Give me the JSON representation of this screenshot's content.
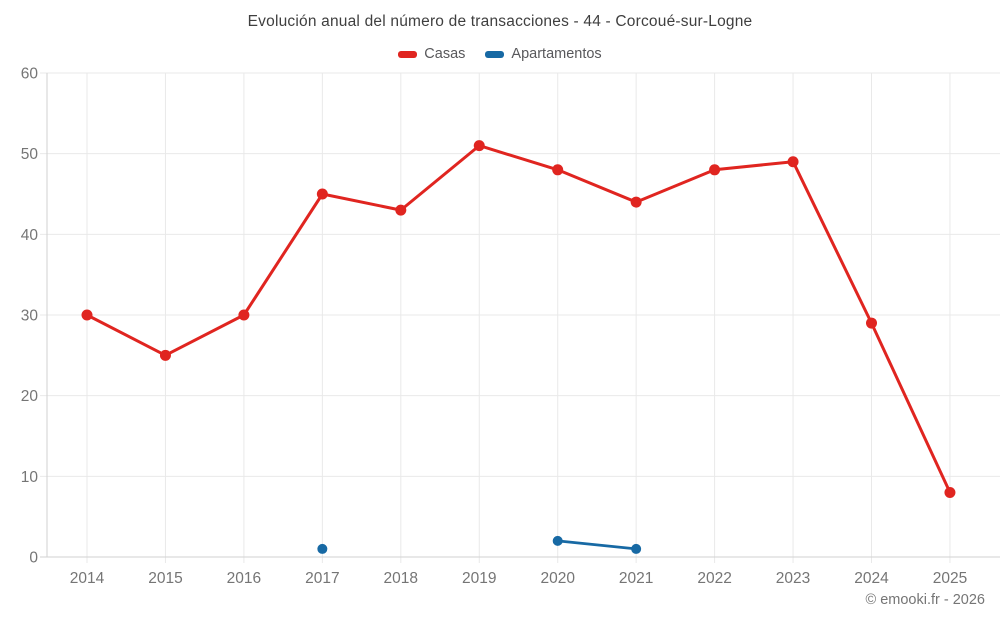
{
  "title": "Evolución anual del número de transacciones - 44 - Corcoué-sur-Logne",
  "footer": "© emooki.fr - 2026",
  "colors": {
    "casas": "#e02520",
    "apartamentos": "#1769a4",
    "grid": "#e9e9e9",
    "axis": "#d2d2d2",
    "tick_label": "#757575",
    "title_text": "#3f3f3f",
    "legend_text": "#58585b",
    "background": "#ffffff"
  },
  "chart_data": {
    "type": "line",
    "title": "Evolución anual del número de transacciones - 44 - Corcoué-sur-Logne",
    "x": [
      2014,
      2015,
      2016,
      2017,
      2018,
      2019,
      2020,
      2021,
      2022,
      2023,
      2024,
      2025
    ],
    "series": [
      {
        "name": "Casas",
        "color": "#e02520",
        "values": [
          30,
          25,
          30,
          45,
          43,
          51,
          48,
          44,
          48,
          49,
          29,
          8
        ]
      },
      {
        "name": "Apartamentos",
        "color": "#1769a4",
        "values": [
          null,
          null,
          null,
          1,
          null,
          null,
          2,
          1,
          null,
          null,
          null,
          null
        ]
      }
    ],
    "xlabel": "",
    "ylabel": "",
    "ylim": [
      0,
      60
    ],
    "yticks": [
      0,
      10,
      20,
      30,
      40,
      50,
      60
    ],
    "grid": true,
    "legend_position": "top"
  }
}
